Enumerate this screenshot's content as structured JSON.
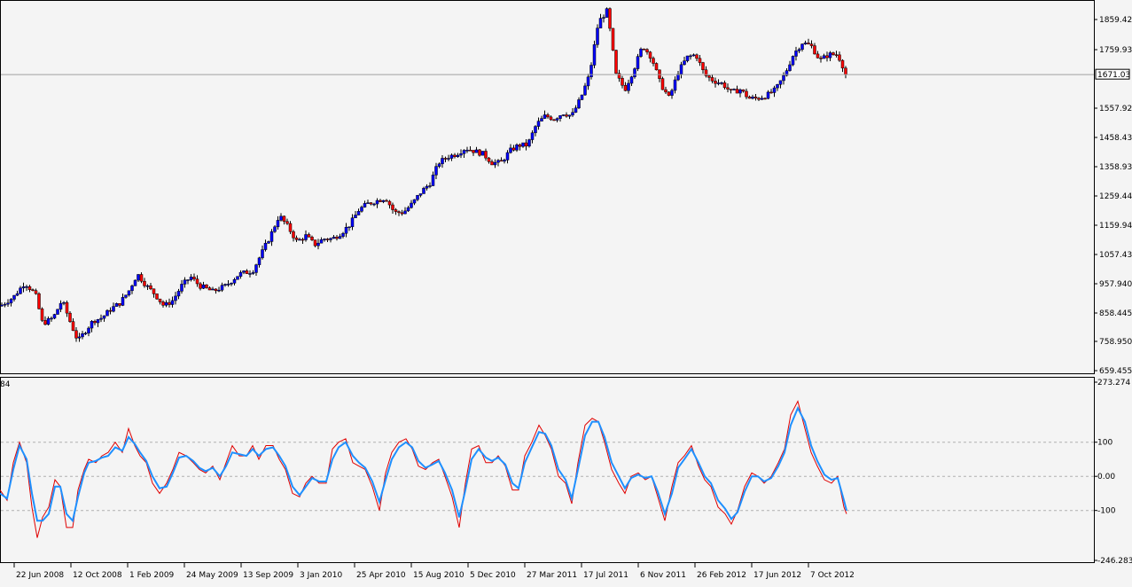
{
  "colors": {
    "background": "#f4f4f4",
    "frame": "#000000",
    "candle_bull": "#0000ff",
    "candle_bear": "#ff0000",
    "wick": "#000000",
    "cci_fast": "#e00000",
    "cci_signal": "#1e90ff",
    "level_line": "#b0b0b0",
    "price_line": "#a0a0a0"
  },
  "main_panel": {
    "price_axis_labels": [
      "1859.42",
      "1759.93",
      "1557.92",
      "1458.43",
      "1358.93",
      "1259.44",
      "1159.94",
      "1057.43",
      "957.940",
      "858.445",
      "758.950",
      "659.455"
    ],
    "current_price": "1671.03"
  },
  "indicator_panel": {
    "corner_label": "84",
    "axis_labels": [
      "273.274",
      "100",
      "0.00",
      "-100",
      "-246.283"
    ]
  },
  "time_axis_labels": [
    "22 Jun 2008",
    "12 Oct 2008",
    "1 Feb 2009",
    "24 May 2009",
    "13 Sep 2009",
    "3 Jan 2010",
    "25 Apr 2010",
    "15 Aug 2010",
    "5 Dec 2010",
    "27 Mar 2011",
    "17 Jul 2011",
    "6 Nov 2011",
    "26 Feb 2012",
    "17 Jun 2012",
    "7 Oct 2012"
  ],
  "chart_data": [
    {
      "type": "candlestick",
      "price_range": [
        659.455,
        1859.42
      ],
      "closes": [
        [
          0,
          880
        ],
        [
          15,
          910
        ],
        [
          28,
          960
        ],
        [
          40,
          920
        ],
        [
          48,
          820
        ],
        [
          60,
          840
        ],
        [
          70,
          900
        ],
        [
          80,
          820
        ],
        [
          88,
          760
        ],
        [
          95,
          790
        ],
        [
          105,
          830
        ],
        [
          115,
          840
        ],
        [
          125,
          870
        ],
        [
          135,
          890
        ],
        [
          145,
          930
        ],
        [
          155,
          990
        ],
        [
          165,
          950
        ],
        [
          175,
          920
        ],
        [
          185,
          880
        ],
        [
          195,
          900
        ],
        [
          205,
          950
        ],
        [
          215,
          980
        ],
        [
          225,
          950
        ],
        [
          240,
          930
        ],
        [
          255,
          950
        ],
        [
          270,
          990
        ],
        [
          285,
          1000
        ],
        [
          295,
          1060
        ],
        [
          305,
          1120
        ],
        [
          315,
          1190
        ],
        [
          325,
          1150
        ],
        [
          335,
          1100
        ],
        [
          345,
          1120
        ],
        [
          355,
          1090
        ],
        [
          365,
          1110
        ],
        [
          375,
          1110
        ],
        [
          385,
          1130
        ],
        [
          395,
          1160
        ],
        [
          405,
          1210
        ],
        [
          415,
          1230
        ],
        [
          425,
          1240
        ],
        [
          435,
          1250
        ],
        [
          445,
          1200
        ],
        [
          455,
          1200
        ],
        [
          465,
          1230
        ],
        [
          475,
          1270
        ],
        [
          485,
          1300
        ],
        [
          495,
          1370
        ],
        [
          505,
          1390
        ],
        [
          515,
          1400
        ],
        [
          525,
          1420
        ],
        [
          535,
          1410
        ],
        [
          545,
          1400
        ],
        [
          555,
          1370
        ],
        [
          565,
          1370
        ],
        [
          575,
          1410
        ],
        [
          585,
          1430
        ],
        [
          595,
          1430
        ],
        [
          605,
          1500
        ],
        [
          615,
          1530
        ],
        [
          625,
          1520
        ],
        [
          635,
          1540
        ],
        [
          645,
          1530
        ],
        [
          655,
          1590
        ],
        [
          665,
          1670
        ],
        [
          675,
          1850
        ],
        [
          685,
          1890
        ],
        [
          695,
          1670
        ],
        [
          705,
          1620
        ],
        [
          715,
          1690
        ],
        [
          725,
          1770
        ],
        [
          735,
          1730
        ],
        [
          745,
          1640
        ],
        [
          755,
          1590
        ],
        [
          765,
          1680
        ],
        [
          775,
          1730
        ],
        [
          785,
          1740
        ],
        [
          795,
          1670
        ],
        [
          805,
          1650
        ],
        [
          815,
          1640
        ],
        [
          825,
          1610
        ],
        [
          835,
          1620
        ],
        [
          845,
          1590
        ],
        [
          855,
          1590
        ],
        [
          865,
          1600
        ],
        [
          875,
          1620
        ],
        [
          885,
          1670
        ],
        [
          895,
          1740
        ],
        [
          905,
          1780
        ],
        [
          915,
          1770
        ],
        [
          925,
          1720
        ],
        [
          935,
          1740
        ],
        [
          945,
          1740
        ],
        [
          955,
          1671
        ]
      ]
    },
    {
      "type": "line",
      "name": "",
      "y_range": [
        -246.283,
        273.274
      ],
      "levels": [
        100,
        0,
        -100
      ],
      "x": [
        0,
        8,
        15,
        22,
        30,
        36,
        42,
        48,
        55,
        62,
        68,
        75,
        82,
        88,
        95,
        100,
        108,
        115,
        122,
        130,
        138,
        145,
        152,
        158,
        165,
        172,
        180,
        188,
        195,
        202,
        210,
        218,
        225,
        232,
        240,
        248,
        255,
        262,
        270,
        278,
        285,
        292,
        300,
        308,
        315,
        322,
        330,
        338,
        345,
        352,
        360,
        368,
        375,
        382,
        390,
        398,
        405,
        412,
        420,
        428,
        435,
        442,
        450,
        458,
        465,
        472,
        480,
        488,
        495,
        502,
        510,
        518,
        525,
        532,
        540,
        548,
        555,
        562,
        570,
        578,
        585,
        592,
        600,
        608,
        615,
        622,
        630,
        638,
        645,
        652,
        660,
        668,
        675,
        682,
        690,
        698,
        705,
        712,
        720,
        728,
        735,
        742,
        750,
        758,
        765,
        772,
        780,
        788,
        795,
        802,
        810,
        818,
        825,
        832,
        840,
        848,
        855,
        862,
        870,
        878,
        885,
        892,
        900,
        908,
        915,
        922,
        930,
        938,
        945,
        952,
        955
      ],
      "series": [
        {
          "name": "",
          "values": [
            -40,
            -70,
            40,
            100,
            40,
            -90,
            -180,
            -120,
            -90,
            -10,
            -30,
            -150,
            -150,
            -40,
            20,
            50,
            40,
            60,
            70,
            100,
            70,
            140,
            90,
            60,
            40,
            -20,
            -50,
            -20,
            20,
            70,
            60,
            40,
            20,
            10,
            30,
            -10,
            40,
            90,
            60,
            60,
            90,
            50,
            90,
            90,
            50,
            20,
            -50,
            -60,
            -20,
            0,
            -20,
            -20,
            80,
            100,
            110,
            40,
            30,
            20,
            -30,
            -100,
            10,
            70,
            100,
            110,
            80,
            30,
            20,
            40,
            50,
            0,
            -60,
            -150,
            -20,
            80,
            90,
            40,
            40,
            60,
            30,
            -40,
            -40,
            60,
            100,
            150,
            120,
            80,
            0,
            -20,
            -80,
            40,
            150,
            170,
            160,
            100,
            20,
            -20,
            -50,
            0,
            10,
            -10,
            0,
            -60,
            -130,
            -30,
            40,
            60,
            90,
            30,
            -10,
            -30,
            -90,
            -110,
            -140,
            -100,
            -30,
            10,
            0,
            -20,
            0,
            40,
            80,
            180,
            220,
            140,
            70,
            30,
            -10,
            -20,
            0,
            -90,
            -110
          ],
          "signal": [
            -50,
            -65,
            20,
            90,
            50,
            -50,
            -130,
            -130,
            -110,
            -30,
            -30,
            -110,
            -130,
            -60,
            10,
            40,
            45,
            55,
            60,
            85,
            75,
            115,
            95,
            70,
            45,
            0,
            -35,
            -30,
            10,
            55,
            60,
            45,
            25,
            15,
            25,
            0,
            30,
            70,
            65,
            60,
            80,
            60,
            80,
            85,
            60,
            30,
            -30,
            -55,
            -30,
            -5,
            -15,
            -15,
            50,
            85,
            100,
            60,
            40,
            25,
            -15,
            -75,
            -10,
            50,
            85,
            100,
            85,
            45,
            25,
            35,
            45,
            10,
            -40,
            -120,
            -40,
            50,
            80,
            55,
            45,
            55,
            35,
            -20,
            -35,
            40,
            85,
            130,
            125,
            90,
            20,
            -10,
            -65,
            20,
            120,
            160,
            160,
            115,
            40,
            0,
            -35,
            -5,
            5,
            -5,
            0,
            -45,
            -110,
            -50,
            25,
            50,
            80,
            40,
            0,
            -20,
            -70,
            -95,
            -125,
            -105,
            -45,
            0,
            0,
            -15,
            -5,
            30,
            70,
            150,
            200,
            160,
            90,
            45,
            5,
            -10,
            -5,
            -70,
            -100
          ]
        }
      ]
    }
  ]
}
